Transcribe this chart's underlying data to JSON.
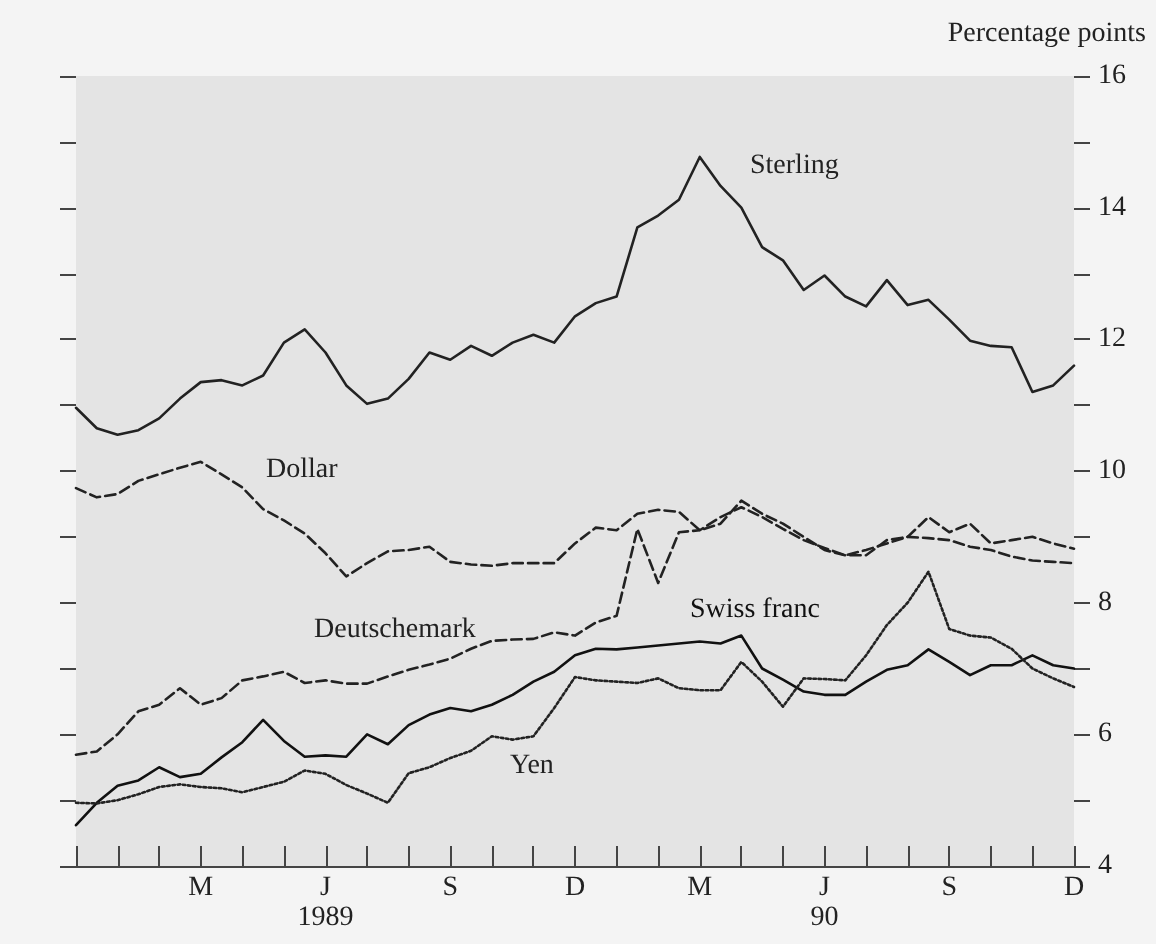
{
  "chart_data": {
    "type": "line",
    "ylabel": "Percentage points",
    "categories": [
      null,
      null,
      null,
      null,
      null,
      null,
      "M",
      null,
      null,
      null,
      null,
      null,
      "J",
      null,
      null,
      null,
      null,
      null,
      "S",
      null,
      null,
      null,
      null,
      null,
      "D",
      null,
      null,
      null,
      null,
      null,
      "M",
      null,
      null,
      null,
      null,
      null,
      "J",
      null,
      null,
      null,
      null,
      null,
      "S",
      null,
      null,
      null,
      null,
      null,
      "D"
    ],
    "series": [
      {
        "name": "Sterling",
        "color": "#222222",
        "line_style": "solid",
        "values": [
          10.96,
          10.65,
          10.55,
          10.62,
          10.8,
          11.1,
          11.35,
          11.38,
          11.3,
          11.45,
          11.95,
          12.15,
          11.8,
          11.3,
          11.02,
          11.1,
          11.4,
          11.8,
          11.69,
          11.9,
          11.75,
          11.95,
          12.07,
          11.95,
          12.35,
          12.55,
          12.65,
          13.7,
          13.88,
          14.12,
          14.77,
          14.33,
          14.0,
          13.4,
          13.2,
          12.75,
          12.97,
          12.65,
          12.5,
          12.9,
          12.52,
          12.6,
          12.3,
          11.98,
          11.9,
          11.88,
          11.2,
          11.3,
          11.6
        ]
      },
      {
        "name": "Dollar",
        "color": "#222222",
        "line_style": "dashed",
        "values": [
          9.74,
          9.6,
          9.65,
          9.85,
          9.95,
          10.05,
          10.14,
          9.95,
          9.75,
          9.42,
          9.25,
          9.05,
          8.75,
          8.4,
          8.6,
          8.78,
          8.8,
          8.85,
          8.62,
          8.58,
          8.56,
          8.6,
          8.6,
          8.6,
          8.9,
          9.14,
          9.1,
          9.35,
          9.41,
          9.38,
          9.1,
          9.2,
          9.55,
          9.35,
          9.2,
          9.0,
          8.8,
          8.72,
          8.72,
          8.95,
          9.0,
          8.98,
          8.95,
          8.85,
          8.8,
          8.7,
          8.64,
          8.62,
          8.6
        ]
      },
      {
        "name": "Deutschemark",
        "color": "#222222",
        "line_style": "dashed",
        "values": [
          5.69,
          5.74,
          6.0,
          6.35,
          6.45,
          6.7,
          6.45,
          6.55,
          6.82,
          6.88,
          6.95,
          6.78,
          6.82,
          6.77,
          6.77,
          6.88,
          6.98,
          7.06,
          7.15,
          7.3,
          7.42,
          7.44,
          7.45,
          7.55,
          7.5,
          7.7,
          7.8,
          9.12,
          8.3,
          9.07,
          9.1,
          9.3,
          9.45,
          9.3,
          9.12,
          8.95,
          8.83,
          8.72,
          8.8,
          8.9,
          9.0,
          9.3,
          9.07,
          9.2,
          8.9,
          8.95,
          9.0,
          8.9,
          8.82
        ]
      },
      {
        "name": "Swiss franc",
        "color": "#111111",
        "line_style": "solid",
        "values": [
          4.62,
          4.96,
          5.22,
          5.3,
          5.5,
          5.35,
          5.4,
          5.65,
          5.88,
          6.22,
          5.9,
          5.66,
          5.68,
          5.66,
          6.0,
          5.85,
          6.14,
          6.3,
          6.4,
          6.35,
          6.45,
          6.6,
          6.8,
          6.95,
          7.2,
          7.3,
          7.29,
          7.32,
          7.35,
          7.38,
          7.41,
          7.38,
          7.5,
          7.0,
          6.83,
          6.65,
          6.6,
          6.6,
          6.8,
          6.98,
          7.05,
          7.29,
          7.1,
          6.9,
          7.05,
          7.05,
          7.2,
          7.05,
          7.0
        ]
      },
      {
        "name": "Yen",
        "color": "#222222",
        "line_style": "dotted",
        "values": [
          4.96,
          4.95,
          5.0,
          5.09,
          5.2,
          5.24,
          5.2,
          5.18,
          5.12,
          5.2,
          5.28,
          5.45,
          5.4,
          5.23,
          5.1,
          4.96,
          5.41,
          5.5,
          5.64,
          5.75,
          5.97,
          5.92,
          5.97,
          6.4,
          6.87,
          6.82,
          6.8,
          6.78,
          6.85,
          6.7,
          6.67,
          6.67,
          7.1,
          6.8,
          6.42,
          6.85,
          6.84,
          6.82,
          7.2,
          7.66,
          8.0,
          8.47,
          7.6,
          7.5,
          7.47,
          7.3,
          7.0,
          6.85,
          6.72
        ]
      }
    ],
    "ylim": [
      4,
      16
    ],
    "yticks": [
      4,
      {
        "value": 5,
        "label": null
      },
      6,
      {
        "value": 7,
        "label": null
      },
      8,
      {
        "value": 9,
        "label": null
      },
      10,
      {
        "value": 11,
        "label": null
      },
      12,
      {
        "value": 13,
        "label": null
      },
      14,
      {
        "value": 15,
        "label": null
      },
      16
    ],
    "annotations": [
      "1989",
      "90"
    ],
    "grid": false,
    "legend": false,
    "marker": "none"
  }
}
